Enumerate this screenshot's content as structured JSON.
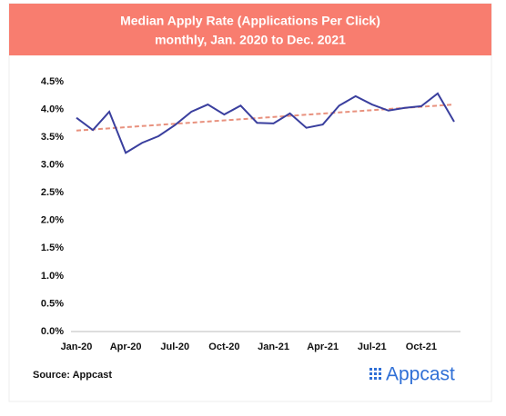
{
  "chart_data": {
    "type": "line",
    "title": "Median Apply Rate (Applications Per Click)",
    "subtitle": "monthly, Jan. 2020 to Dec. 2021",
    "categories": [
      "Jan-20",
      null,
      null,
      "Apr-20",
      null,
      null,
      "Jul-20",
      null,
      null,
      "Oct-20",
      null,
      null,
      "Jan-21",
      null,
      null,
      "Apr-21",
      null,
      null,
      "Jul-21",
      null,
      null,
      "Oct-21",
      null,
      null
    ],
    "series": [
      {
        "color": "#3a3f9e",
        "values": [
          3.85,
          3.63,
          3.96,
          3.22,
          3.4,
          3.52,
          3.72,
          3.96,
          4.09,
          3.91,
          4.07,
          3.76,
          3.75,
          3.93,
          3.67,
          3.73,
          4.07,
          4.24,
          4.09,
          3.98,
          4.03,
          4.06,
          4.29,
          3.78
        ]
      }
    ],
    "trendline": {
      "color": "#e8917e",
      "values": [
        3.62,
        4.09
      ]
    },
    "ylim": [
      0,
      4.5
    ],
    "yticks": [
      {
        "value": 0,
        "label": "0.0%"
      },
      {
        "value": 0.5,
        "label": "0.5%"
      },
      {
        "value": 1,
        "label": "1.0%"
      },
      {
        "value": 1.5,
        "label": "1.5%"
      },
      {
        "value": 2,
        "label": "2.0%"
      },
      {
        "value": 2.5,
        "label": "2.5%"
      },
      {
        "value": 3,
        "label": "3.0%"
      },
      {
        "value": 3.5,
        "label": "3.5%"
      },
      {
        "value": 4,
        "label": "4.0%"
      },
      {
        "value": 4.5,
        "label": "4.5%"
      }
    ],
    "grid": false,
    "source": "Source: Appcast",
    "logo": "Appcast"
  }
}
